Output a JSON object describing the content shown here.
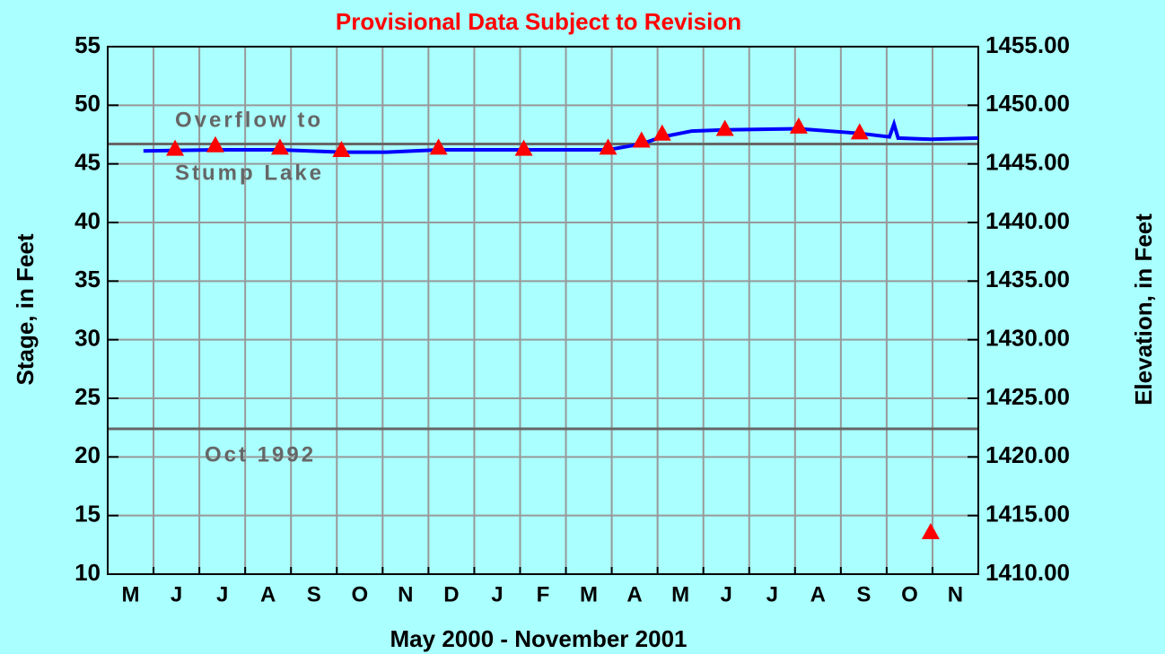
{
  "chart_data": {
    "type": "line",
    "title": "Provisional Data Subject to Revision",
    "x_label": "May 2000 - November 2001",
    "y_label": "Stage, in Feet",
    "y2_label": "Elevation, in Feet",
    "categories": [
      "M",
      "J",
      "J",
      "A",
      "S",
      "O",
      "N",
      "D",
      "J",
      "F",
      "M",
      "A",
      "M",
      "J",
      "J",
      "A",
      "S",
      "O",
      "N"
    ],
    "xlim": [
      0,
      19
    ],
    "ylim": [
      10,
      55
    ],
    "yticks": [
      10,
      15,
      20,
      25,
      30,
      35,
      40,
      45,
      50,
      55
    ],
    "y2lim": [
      1410,
      1455
    ],
    "y2ticks": [
      {
        "value": 1410,
        "label": "1410.00"
      },
      {
        "value": 1415,
        "label": "1415.00"
      },
      {
        "value": 1420,
        "label": "1420.00"
      },
      {
        "value": 1425,
        "label": "1425.00"
      },
      {
        "value": 1430,
        "label": "1430.00"
      },
      {
        "value": 1435,
        "label": "1435.00"
      },
      {
        "value": 1440,
        "label": "1440.00"
      },
      {
        "value": 1445,
        "label": "1445.00"
      },
      {
        "value": 1450,
        "label": "1450.00"
      },
      {
        "value": 1455,
        "label": "1455.00"
      }
    ],
    "grid": true,
    "series": [
      {
        "color": "#0000ff",
        "marker": "line",
        "x": [
          0.78,
          2.35,
          3.76,
          5.1,
          6.08,
          7.22,
          9.08,
          10.92,
          11.65,
          12.1,
          12.75,
          13.47,
          15.08,
          16.41,
          17.06,
          17.16,
          17.25,
          17.96,
          19.0
        ],
        "values": [
          46.1,
          46.2,
          46.2,
          46.0,
          46.0,
          46.2,
          46.2,
          46.2,
          46.7,
          47.3,
          47.8,
          47.9,
          48.0,
          47.6,
          47.3,
          48.4,
          47.2,
          47.1,
          47.2
        ]
      },
      {
        "color": "#ff0000",
        "marker": "triangle",
        "x": [
          1.47,
          2.35,
          3.76,
          5.1,
          7.22,
          9.08,
          10.92,
          11.65,
          12.1,
          13.47,
          15.08,
          16.41,
          17.96
        ],
        "values": [
          46.3,
          46.6,
          46.4,
          46.2,
          46.4,
          46.3,
          46.4,
          47.0,
          47.6,
          48.0,
          48.2,
          47.7,
          13.6
        ]
      }
    ],
    "reference_lines": [
      {
        "value": 46.7,
        "label": [
          "Overflow to",
          "Stump Lake"
        ]
      },
      {
        "value": 22.4,
        "label": [
          "Oct 1992"
        ]
      }
    ]
  }
}
